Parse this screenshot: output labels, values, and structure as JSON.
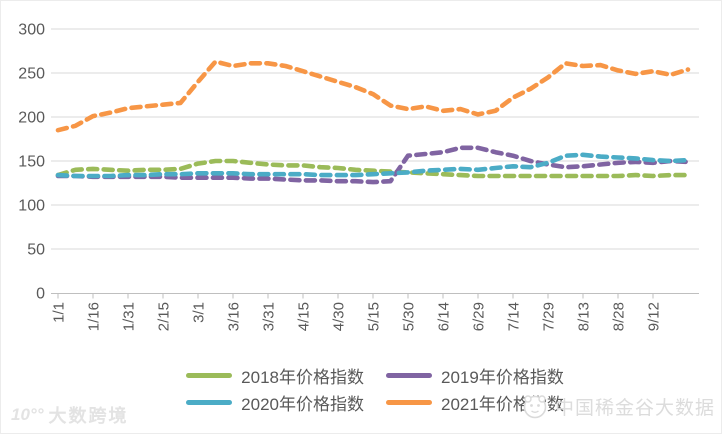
{
  "chart_data": {
    "type": "line",
    "title": "",
    "line_style": "dashed",
    "grid": "horizontal",
    "legend_position": "bottom",
    "ylim": [
      0,
      300
    ],
    "y_ticks": [
      0,
      50,
      100,
      150,
      200,
      250,
      300
    ],
    "x_tick_labels": [
      "1/1",
      "1/16",
      "1/31",
      "2/15",
      "3/1",
      "3/16",
      "3/31",
      "4/15",
      "4/30",
      "5/15",
      "5/30",
      "6/14",
      "6/29",
      "7/14",
      "7/29",
      "8/13",
      "8/28",
      "9/12"
    ],
    "x_tick_every": 2,
    "x_points": [
      "1/1",
      "1/8",
      "1/16",
      "1/23",
      "1/31",
      "2/7",
      "2/15",
      "2/22",
      "3/1",
      "3/8",
      "3/16",
      "3/23",
      "3/31",
      "4/7",
      "4/15",
      "4/22",
      "4/30",
      "5/7",
      "5/15",
      "5/22",
      "5/30",
      "6/6",
      "6/14",
      "6/21",
      "6/29",
      "7/6",
      "7/14",
      "7/21",
      "7/29",
      "8/5",
      "8/13",
      "8/20",
      "8/28",
      "9/4",
      "9/12",
      "9/19",
      "9/26"
    ],
    "series": [
      {
        "name": "2018年价格指数",
        "color": "#9BBB59",
        "values": [
          134,
          140,
          141,
          140,
          139,
          140,
          140,
          141,
          147,
          150,
          150,
          148,
          146,
          145,
          145,
          143,
          142,
          140,
          139,
          138,
          137,
          136,
          135,
          134,
          133,
          133,
          133,
          133,
          133,
          133,
          133,
          133,
          133,
          134,
          133,
          134,
          134
        ]
      },
      {
        "name": "2019年价格指数",
        "color": "#8064A2",
        "values": [
          133,
          133,
          132,
          132,
          132,
          132,
          132,
          131,
          131,
          131,
          131,
          130,
          130,
          129,
          128,
          128,
          127,
          127,
          126,
          127,
          156,
          158,
          160,
          165,
          165,
          160,
          156,
          150,
          146,
          143,
          144,
          146,
          148,
          149,
          148,
          150,
          149
        ]
      },
      {
        "name": "2020年价格指数",
        "color": "#4BACC6",
        "values": [
          134,
          133,
          133,
          133,
          134,
          134,
          135,
          135,
          136,
          136,
          136,
          135,
          135,
          135,
          135,
          134,
          134,
          134,
          135,
          136,
          137,
          139,
          140,
          141,
          140,
          142,
          144,
          143,
          148,
          156,
          157,
          155,
          154,
          153,
          151,
          150,
          151
        ]
      },
      {
        "name": "2021年价格指数",
        "color": "#F79646",
        "values": [
          185,
          190,
          201,
          205,
          210,
          212,
          214,
          216,
          240,
          263,
          258,
          261,
          261,
          258,
          252,
          246,
          240,
          234,
          226,
          213,
          209,
          212,
          207,
          209,
          203,
          207,
          222,
          232,
          245,
          261,
          258,
          259,
          253,
          249,
          252,
          248,
          254
        ]
      }
    ]
  },
  "axis_colors": {
    "text": "#595959",
    "gridline": "#D9D9D9",
    "axis_line": "#BFBFBF"
  },
  "watermark_left": {
    "logo": "10°°",
    "text": "大数跨境"
  },
  "watermark_right": {
    "text": "中国稀金谷大数据"
  }
}
